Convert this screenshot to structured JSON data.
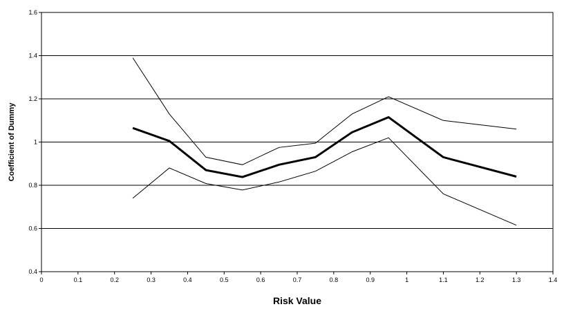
{
  "chart_data": {
    "type": "line",
    "title": "",
    "xlabel": "Risk Value",
    "ylabel": "Coefficient of Dummy",
    "xlim": [
      0,
      1.4
    ],
    "ylim": [
      0.4,
      1.6
    ],
    "x_ticks": [
      "0",
      "0.1",
      "0.2",
      "0.3",
      "0.4",
      "0.5",
      "0.6",
      "0.7",
      "0.8",
      "0.9",
      "1",
      "1.1",
      "1.2",
      "1.3",
      "1.4"
    ],
    "y_ticks": [
      "0.4",
      "0.6",
      "0.8",
      "1",
      "1.2",
      "1.4",
      "1.6"
    ],
    "grid": "horizontal",
    "legend": "none",
    "x": [
      0.25,
      0.35,
      0.45,
      0.55,
      0.65,
      0.75,
      0.85,
      0.95,
      1.1,
      1.3
    ],
    "series": [
      {
        "values": [
          1.39,
          1.13,
          0.93,
          0.895,
          0.975,
          0.995,
          1.13,
          1.21,
          1.1,
          1.06
        ],
        "color": "#000000",
        "weight": "thin"
      },
      {
        "values": [
          1.065,
          1.005,
          0.87,
          0.838,
          0.895,
          0.93,
          1.045,
          1.115,
          0.93,
          0.84
        ],
        "color": "#000000",
        "weight": "thick"
      },
      {
        "values": [
          0.74,
          0.88,
          0.808,
          0.778,
          0.815,
          0.865,
          0.955,
          1.02,
          0.76,
          0.615
        ],
        "color": "#000000",
        "weight": "thin"
      }
    ]
  }
}
